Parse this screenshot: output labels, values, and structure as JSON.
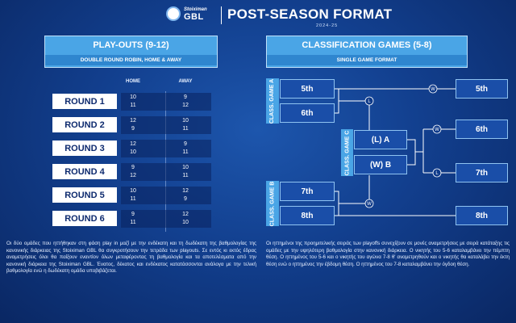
{
  "header": {
    "logo_brand": "Stoiximan",
    "logo_league": "GBL",
    "title": "POST-SEASON FORMAT",
    "season": "2024-25"
  },
  "playouts": {
    "title": "PLAY-OUTS (9-12)",
    "subtitle": "DOUBLE ROUND ROBIN, HOME & AWAY",
    "columns": [
      "HOME",
      "AWAY"
    ],
    "rounds": [
      {
        "label": "ROUND 1",
        "home": [
          "10",
          "11"
        ],
        "away": [
          "9",
          "12"
        ]
      },
      {
        "label": "ROUND 2",
        "home": [
          "12",
          "9"
        ],
        "away": [
          "10",
          "11"
        ]
      },
      {
        "label": "ROUND 3",
        "home": [
          "12",
          "10"
        ],
        "away": [
          "9",
          "11"
        ]
      },
      {
        "label": "ROUND 4",
        "home": [
          "9",
          "12"
        ],
        "away": [
          "10",
          "11"
        ]
      },
      {
        "label": "ROUND 5",
        "home": [
          "10",
          "11"
        ],
        "away": [
          "12",
          "9"
        ]
      },
      {
        "label": "ROUND 6",
        "home": [
          "9",
          "11"
        ],
        "away": [
          "12",
          "10"
        ]
      }
    ]
  },
  "classification": {
    "title": "CLASSIFICATION GAMES (5-8)",
    "subtitle": "SINGLE GAME FORMAT",
    "game_a": {
      "label": "CLASS. GAME A",
      "teams": [
        "5th",
        "6th"
      ]
    },
    "game_b": {
      "label": "CLASS. GAME B",
      "teams": [
        "7th",
        "8th"
      ]
    },
    "game_c": {
      "label": "CLASS. GAME C",
      "teams": [
        "(L) A",
        "(W) B"
      ]
    },
    "results": [
      "5th",
      "6th",
      "7th",
      "8th"
    ],
    "winner_mark": "W",
    "loser_mark": "L"
  },
  "notes": {
    "left": "Οι δύο ομάδες που ηττήθηκαν στη φάση play in μαζί με την ενδέκατη και τη δωδέκατη της βαθμολογίας της κανονικής διάρκειας της Stoiximan GBL θα συγκροτήσουν την τετράδα των playouts. Σε εντός κι εκτός έδρας αναμετρήσεις όλοι θα παίξουν εναντίον όλων μεταφέροντας τη βαθμολογία και τα αποτελέσματα από την κανονική διάρκεια της Stoiximan GBL. Ένατος, δέκατος και ενδέκατος κατατάσσονται ανάλογα με την τελική βαθμολογία ενώ η δωδέκατη ομάδα υποβιβάζεται.",
    "right": "Οι ηττημένοι της προημιτελικής σειράς των playoffs συνεχίζουν σε μονές αναμετρήσεις με σειρά κατάταξης τις ομάδες με την υψηλότερη βαθμολογία στην κανονική διάρκεια. Ο νικητής του 5-6 καταλαμβάνει την πέμπτη θέση. Ο ηττημένος του 5-6 και ο νικητής του αγώνα 7-8 θ' αναμετρηθούν και ο νικητής θα καταλάβει την έκτη θέση ενώ ο ηττημένος την έβδομη θέση. Ο ηττημένος του 7-8 καταλαμβάνει την όγδοη θέση."
  }
}
